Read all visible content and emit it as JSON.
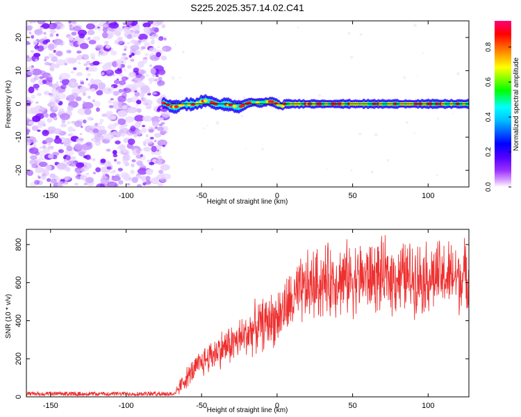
{
  "title": "S225.2025.357.14.02.C41",
  "spectrogram": {
    "type": "heatmap",
    "xlabel": "Height of straight line (km)",
    "ylabel": "Frequency (Hz)",
    "xlim": [
      -166,
      127
    ],
    "ylim": [
      -25,
      25
    ],
    "xticks": [
      -150,
      -100,
      -50,
      0,
      50,
      100
    ],
    "yticks": [
      -20,
      -10,
      0,
      10,
      20
    ],
    "noise_region_x": [
      -166,
      -73
    ],
    "signal_start_x": -75,
    "signal_line_freq": 0,
    "colorbar": {
      "label": "Normalized spectral amplitude",
      "range": [
        0,
        0.95
      ],
      "ticks": [
        0.0,
        0.2,
        0.4,
        0.6,
        0.8
      ],
      "tick_labels": [
        "0.0",
        "0.2",
        "0.4",
        "0.6",
        "0.8"
      ],
      "colors": [
        "#ffffff",
        "#d8a0ff",
        "#7b00ff",
        "#0000ff",
        "#00ffff",
        "#00ff00",
        "#ffff00",
        "#ff8000",
        "#ff0000",
        "#ff0077"
      ]
    }
  },
  "chart_data": {
    "type": "line",
    "title": "",
    "xlabel": "Height of straight line (km)",
    "ylabel": "SNR (10 * v/v)",
    "xlim": [
      -166,
      127
    ],
    "ylim": [
      0,
      880
    ],
    "xticks": [
      -150,
      -100,
      -50,
      0,
      50,
      100
    ],
    "yticks": [
      0,
      200,
      400,
      600,
      800
    ],
    "series": [
      {
        "name": "SNR",
        "color": "#ee3030",
        "x": [
          -166,
          -150,
          -130,
          -110,
          -90,
          -75,
          -67,
          -64,
          -60,
          -55,
          -50,
          -45,
          -40,
          -35,
          -30,
          -25,
          -20,
          -15,
          -10,
          -5,
          0,
          5,
          10,
          15,
          20,
          25,
          30,
          35,
          40,
          45,
          50,
          55,
          60,
          65,
          70,
          75,
          80,
          85,
          90,
          95,
          100,
          105,
          110,
          115,
          120,
          127
        ],
        "y": [
          15,
          15,
          15,
          15,
          15,
          15,
          18,
          60,
          100,
          140,
          180,
          210,
          240,
          260,
          280,
          300,
          330,
          360,
          380,
          400,
          420,
          460,
          500,
          540,
          570,
          590,
          600,
          610,
          620,
          620,
          625,
          625,
          630,
          630,
          630,
          630,
          630,
          630,
          630,
          630,
          630,
          630,
          630,
          630,
          630,
          630
        ]
      }
    ]
  }
}
